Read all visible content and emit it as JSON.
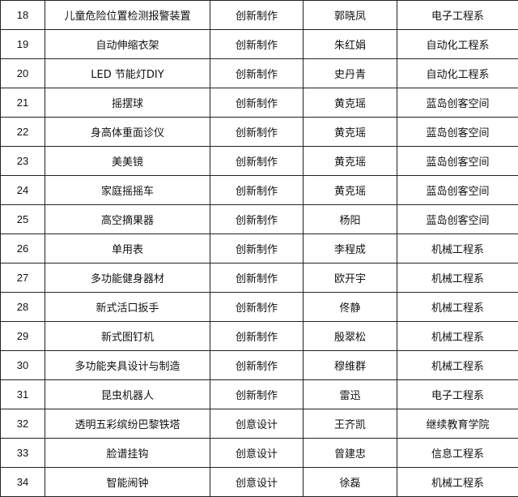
{
  "rows": [
    {
      "no": "18",
      "project": "儿童危险位置检测报警装置",
      "category": "创新制作",
      "person": "郭晓凤",
      "department": "电子工程系"
    },
    {
      "no": "19",
      "project": "自动伸缩衣架",
      "category": "创新制作",
      "person": "朱红娟",
      "department": "自动化工程系"
    },
    {
      "no": "20",
      "project": "LED 节能灯DIY",
      "category": "创新制作",
      "person": "史丹青",
      "department": "自动化工程系"
    },
    {
      "no": "21",
      "project": "摇摆球",
      "category": "创新制作",
      "person": "黄克瑶",
      "department": "蓝岛创客空间"
    },
    {
      "no": "22",
      "project": "身高体重面诊仪",
      "category": "创新制作",
      "person": "黄克瑶",
      "department": "蓝岛创客空间"
    },
    {
      "no": "23",
      "project": "美美镜",
      "category": "创新制作",
      "person": "黄克瑶",
      "department": "蓝岛创客空间"
    },
    {
      "no": "24",
      "project": "家庭摇摇车",
      "category": "创新制作",
      "person": "黄克瑶",
      "department": "蓝岛创客空间"
    },
    {
      "no": "25",
      "project": "高空摘果器",
      "category": "创新制作",
      "person": "杨阳",
      "department": "蓝岛创客空间"
    },
    {
      "no": "26",
      "project": "单用表",
      "category": "创新制作",
      "person": "李程成",
      "department": "机械工程系"
    },
    {
      "no": "27",
      "project": "多功能健身器材",
      "category": "创新制作",
      "person": "欧开宇",
      "department": "机械工程系"
    },
    {
      "no": "28",
      "project": "新式活口扳手",
      "category": "创新制作",
      "person": "佟静",
      "department": "机械工程系"
    },
    {
      "no": "29",
      "project": "新式图钉机",
      "category": "创新制作",
      "person": "殷翠松",
      "department": "机械工程系"
    },
    {
      "no": "30",
      "project": "多功能夹具设计与制造",
      "category": "创新制作",
      "person": "穆维群",
      "department": "机械工程系"
    },
    {
      "no": "31",
      "project": "昆虫机器人",
      "category": "创新制作",
      "person": "雷迅",
      "department": "电子工程系"
    },
    {
      "no": "32",
      "project": "透明五彩缤纷巴黎铁塔",
      "category": "创意设计",
      "person": "王齐凯",
      "department": "继续教育学院"
    },
    {
      "no": "33",
      "project": "脸谱挂钩",
      "category": "创意设计",
      "person": "曾建忠",
      "department": "信息工程系"
    },
    {
      "no": "34",
      "project": "智能闹钟",
      "category": "创意设计",
      "person": "徐磊",
      "department": "机械工程系"
    }
  ]
}
